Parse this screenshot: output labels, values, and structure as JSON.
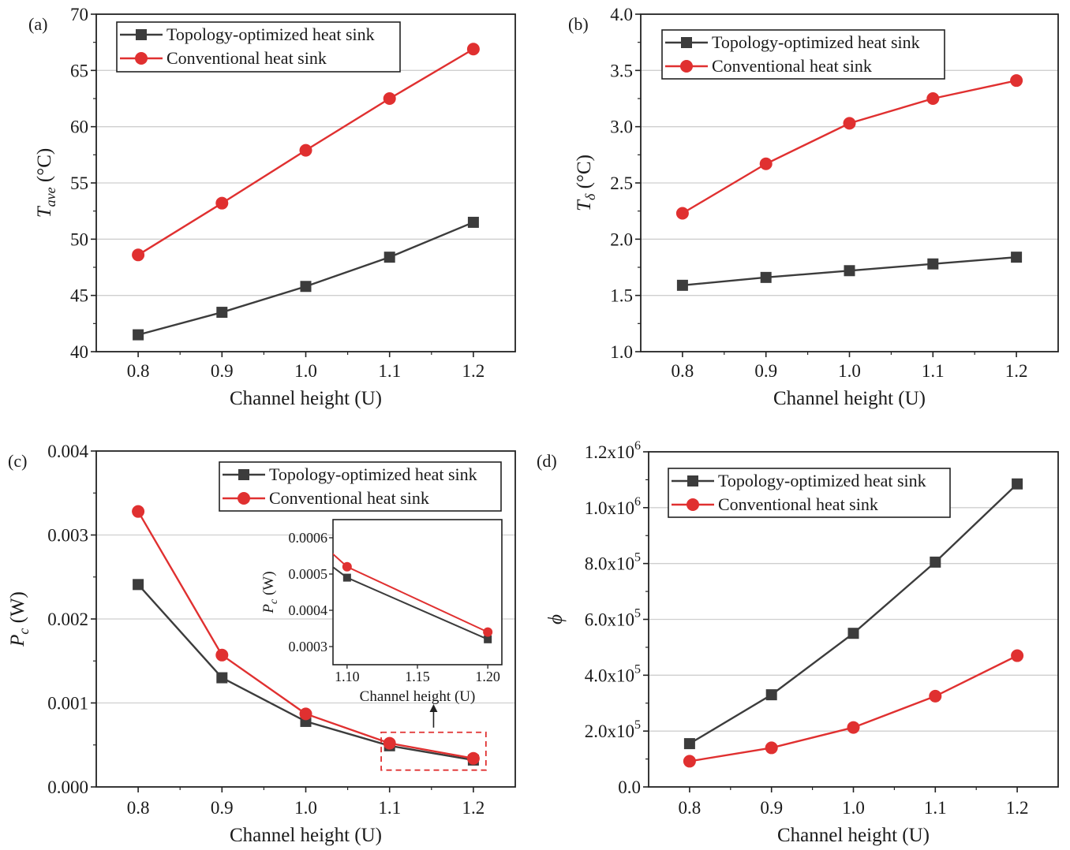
{
  "chart_data": [
    {
      "panel": "(a)",
      "type": "line",
      "xlabel": "Channel height (U)",
      "ylabel": "T",
      "ylabel_sub": "ave",
      "ylabel_unit": " (°C)",
      "xlim": [
        0.75,
        1.25
      ],
      "ylim": [
        40,
        70
      ],
      "xticks": [
        0.8,
        0.9,
        1.0,
        1.1,
        1.2
      ],
      "xtick_labels": [
        "0.8",
        "0.9",
        "1.0",
        "1.1",
        "1.2"
      ],
      "yticks": [
        40,
        45,
        50,
        55,
        60,
        65,
        70
      ],
      "ytick_labels": [
        "40",
        "45",
        "50",
        "55",
        "60",
        "65",
        "70"
      ],
      "grid": true,
      "legend_position": "top-left",
      "x": [
        0.8,
        0.9,
        1.0,
        1.1,
        1.2
      ],
      "series": [
        {
          "name": "Topology-optimized heat sink",
          "marker": "square",
          "color": "#3c3c3c",
          "values": [
            41.5,
            43.5,
            45.8,
            48.4,
            51.5
          ]
        },
        {
          "name": "Conventional heat sink",
          "marker": "circle",
          "color": "#e03030",
          "values": [
            48.6,
            53.2,
            57.9,
            62.5,
            66.9
          ]
        }
      ]
    },
    {
      "panel": "(b)",
      "type": "line",
      "xlabel": "Channel height (U)",
      "ylabel": "T",
      "ylabel_sub": "δ",
      "ylabel_unit": " (°C)",
      "xlim": [
        0.75,
        1.25
      ],
      "ylim": [
        1.0,
        4.0
      ],
      "xticks": [
        0.8,
        0.9,
        1.0,
        1.1,
        1.2
      ],
      "xtick_labels": [
        "0.8",
        "0.9",
        "1.0",
        "1.1",
        "1.2"
      ],
      "yticks": [
        1.0,
        1.5,
        2.0,
        2.5,
        3.0,
        3.5,
        4.0
      ],
      "ytick_labels": [
        "1.0",
        "1.5",
        "2.0",
        "2.5",
        "3.0",
        "3.5",
        "4.0"
      ],
      "grid": true,
      "legend_position": "top-left",
      "x": [
        0.8,
        0.9,
        1.0,
        1.1,
        1.2
      ],
      "series": [
        {
          "name": "Topology-optimized heat sink",
          "marker": "square",
          "color": "#3c3c3c",
          "values": [
            1.59,
            1.66,
            1.72,
            1.78,
            1.84
          ]
        },
        {
          "name": "Conventional heat sink",
          "marker": "circle",
          "color": "#e03030",
          "values": [
            2.23,
            2.67,
            3.03,
            3.25,
            3.41
          ]
        }
      ]
    },
    {
      "panel": "(c)",
      "type": "line",
      "xlabel": "Channel height (U)",
      "ylabel": "P",
      "ylabel_sub": "c",
      "ylabel_unit": " (W)",
      "xlim": [
        0.75,
        1.25
      ],
      "ylim": [
        0,
        0.004
      ],
      "xticks": [
        0.8,
        0.9,
        1.0,
        1.1,
        1.2
      ],
      "xtick_labels": [
        "0.8",
        "0.9",
        "1.0",
        "1.1",
        "1.2"
      ],
      "yticks": [
        0,
        0.001,
        0.002,
        0.003,
        0.004
      ],
      "ytick_labels": [
        "0.000",
        "0.001",
        "0.002",
        "0.003",
        "0.004"
      ],
      "grid": true,
      "legend_position": "top-right",
      "x": [
        0.8,
        0.9,
        1.0,
        1.1,
        1.2
      ],
      "series": [
        {
          "name": "Topology-optimized heat sink",
          "marker": "square",
          "color": "#3c3c3c",
          "values": [
            0.00241,
            0.0013,
            0.00078,
            0.00049,
            0.00032
          ]
        },
        {
          "name": "Conventional heat sink",
          "marker": "circle",
          "color": "#e03030",
          "values": [
            0.00328,
            0.00157,
            0.00087,
            0.00052,
            0.00034
          ]
        }
      ],
      "inset": {
        "xlabel": "Channel height (U)",
        "ylabel": "P",
        "ylabel_sub": "c",
        "ylabel_unit": " (W)",
        "xlim": [
          1.09,
          1.21
        ],
        "ylim": [
          0.00025,
          0.00065
        ],
        "xticks": [
          1.1,
          1.15,
          1.2
        ],
        "xtick_labels": [
          "1.10",
          "1.15",
          "1.20"
        ],
        "yticks": [
          0.0003,
          0.0004,
          0.0005,
          0.0006
        ],
        "ytick_labels": [
          "0.0003",
          "0.0004",
          "0.0005",
          "0.0006"
        ]
      }
    },
    {
      "panel": "(d)",
      "type": "line",
      "xlabel": "Channel height (U)",
      "ylabel": "ϕ",
      "xlim": [
        0.75,
        1.25
      ],
      "ylim": [
        0,
        1200000
      ],
      "xticks": [
        0.8,
        0.9,
        1.0,
        1.1,
        1.2
      ],
      "xtick_labels": [
        "0.8",
        "0.9",
        "1.0",
        "1.1",
        "1.2"
      ],
      "yticks": [
        0,
        200000,
        400000,
        600000,
        800000,
        1000000,
        1200000
      ],
      "ytick_labels": [
        "0.0",
        "2.0x10",
        "4.0x10",
        "6.0x10",
        "8.0x10",
        "1.0x10",
        "1.2x10"
      ],
      "ytick_exponents": [
        "",
        "5",
        "5",
        "5",
        "5",
        "6",
        "6"
      ],
      "grid": true,
      "legend_position": "top-left",
      "x": [
        0.8,
        0.9,
        1.0,
        1.1,
        1.2
      ],
      "series": [
        {
          "name": "Topology-optimized heat sink",
          "marker": "square",
          "color": "#3c3c3c",
          "values": [
            155000,
            330000,
            550000,
            805000,
            1085000
          ]
        },
        {
          "name": "Conventional heat sink",
          "marker": "circle",
          "color": "#e03030",
          "values": [
            92000,
            140000,
            213000,
            325000,
            470000
          ]
        }
      ]
    }
  ]
}
